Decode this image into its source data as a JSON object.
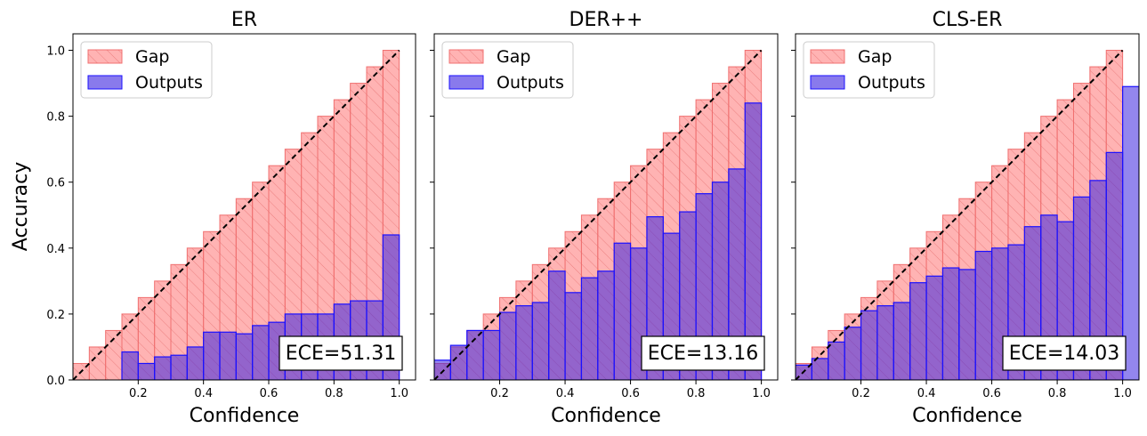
{
  "chart_data": [
    {
      "type": "bar",
      "title": "ER",
      "xlabel": "Confidence",
      "ylabel": "Accuracy",
      "xlim": [
        0.0,
        1.05
      ],
      "ylim": [
        0.0,
        1.05
      ],
      "xticks": [
        "0.2",
        "0.4",
        "0.6",
        "0.8",
        "1.0"
      ],
      "yticks": [
        "0.0",
        "0.2",
        "0.4",
        "0.6",
        "0.8",
        "1.0"
      ],
      "bin_width": 0.05,
      "bins": [
        0.05,
        0.1,
        0.15,
        0.2,
        0.25,
        0.3,
        0.35,
        0.4,
        0.45,
        0.5,
        0.55,
        0.6,
        0.65,
        0.7,
        0.75,
        0.8,
        0.85,
        0.9,
        0.95,
        1.0
      ],
      "outputs": [
        0,
        0,
        0,
        0.085,
        0.05,
        0.07,
        0.075,
        0.1,
        0.145,
        0.145,
        0.14,
        0.165,
        0.175,
        0.2,
        0.2,
        0.2,
        0.23,
        0.24,
        0.24,
        0.44
      ],
      "series": [
        {
          "name": "Gap"
        },
        {
          "name": "Outputs"
        }
      ],
      "legend": "top-left",
      "ece_label": "ECE=51.31"
    },
    {
      "type": "bar",
      "title": "DER++",
      "xlabel": "Confidence",
      "ylabel": "",
      "xlim": [
        0.0,
        1.05
      ],
      "ylim": [
        0.0,
        1.05
      ],
      "xticks": [
        "0.2",
        "0.4",
        "0.6",
        "0.8",
        "1.0"
      ],
      "yticks": [],
      "bin_width": 0.05,
      "bins": [
        0.05,
        0.1,
        0.15,
        0.2,
        0.25,
        0.3,
        0.35,
        0.4,
        0.45,
        0.5,
        0.55,
        0.6,
        0.65,
        0.7,
        0.75,
        0.8,
        0.85,
        0.9,
        0.95,
        1.0
      ],
      "outputs": [
        0.065,
        0.06,
        0.105,
        0.15,
        0.15,
        0.205,
        0.225,
        0.235,
        0.33,
        0.265,
        0.31,
        0.33,
        0.415,
        0.4,
        0.495,
        0.445,
        0.51,
        0.565,
        0.6,
        0.64,
        0.84
      ],
      "outputs_offset_bins": [
        0.0,
        0.05,
        0.1,
        0.15,
        0.2,
        0.25,
        0.3,
        0.35,
        0.4,
        0.45,
        0.5,
        0.55,
        0.6,
        0.65,
        0.7,
        0.75,
        0.8,
        0.85,
        0.9,
        0.95,
        1.0
      ],
      "series": [
        {
          "name": "Gap"
        },
        {
          "name": "Outputs"
        }
      ],
      "legend": "top-left",
      "ece_label": "ECE=13.16"
    },
    {
      "type": "bar",
      "title": "CLS-ER",
      "xlabel": "Confidence",
      "ylabel": "",
      "xlim": [
        0.0,
        1.05
      ],
      "ylim": [
        0.0,
        1.05
      ],
      "xticks": [
        "0.2",
        "0.4",
        "0.6",
        "0.8",
        "1.0"
      ],
      "yticks": [],
      "bin_width": 0.05,
      "bins": [
        0.05,
        0.1,
        0.15,
        0.2,
        0.25,
        0.3,
        0.35,
        0.4,
        0.45,
        0.5,
        0.55,
        0.6,
        0.65,
        0.7,
        0.75,
        0.8,
        0.85,
        0.9,
        0.95,
        1.0
      ],
      "outputs": [
        0.045,
        0.065,
        0.115,
        0.16,
        0.21,
        0.225,
        0.235,
        0.295,
        0.315,
        0.34,
        0.335,
        0.39,
        0.4,
        0.41,
        0.465,
        0.5,
        0.48,
        0.555,
        0.605,
        0.69,
        0.89
      ],
      "outputs_offset_bins": [
        0.05,
        0.1,
        0.15,
        0.2,
        0.25,
        0.3,
        0.35,
        0.4,
        0.45,
        0.5,
        0.55,
        0.6,
        0.65,
        0.7,
        0.75,
        0.8,
        0.85,
        0.9,
        0.95,
        1.0,
        1.05
      ],
      "series": [
        {
          "name": "Gap"
        },
        {
          "name": "Outputs"
        }
      ],
      "legend": "top-left",
      "ece_label": "ECE=14.03"
    }
  ],
  "colors": {
    "gap_fill": "#ff8080",
    "gap_edge": "#f07070",
    "outputs_fill": "#3a22e0",
    "outputs_edge": "#1a10ff",
    "diagonal": "#000000"
  }
}
